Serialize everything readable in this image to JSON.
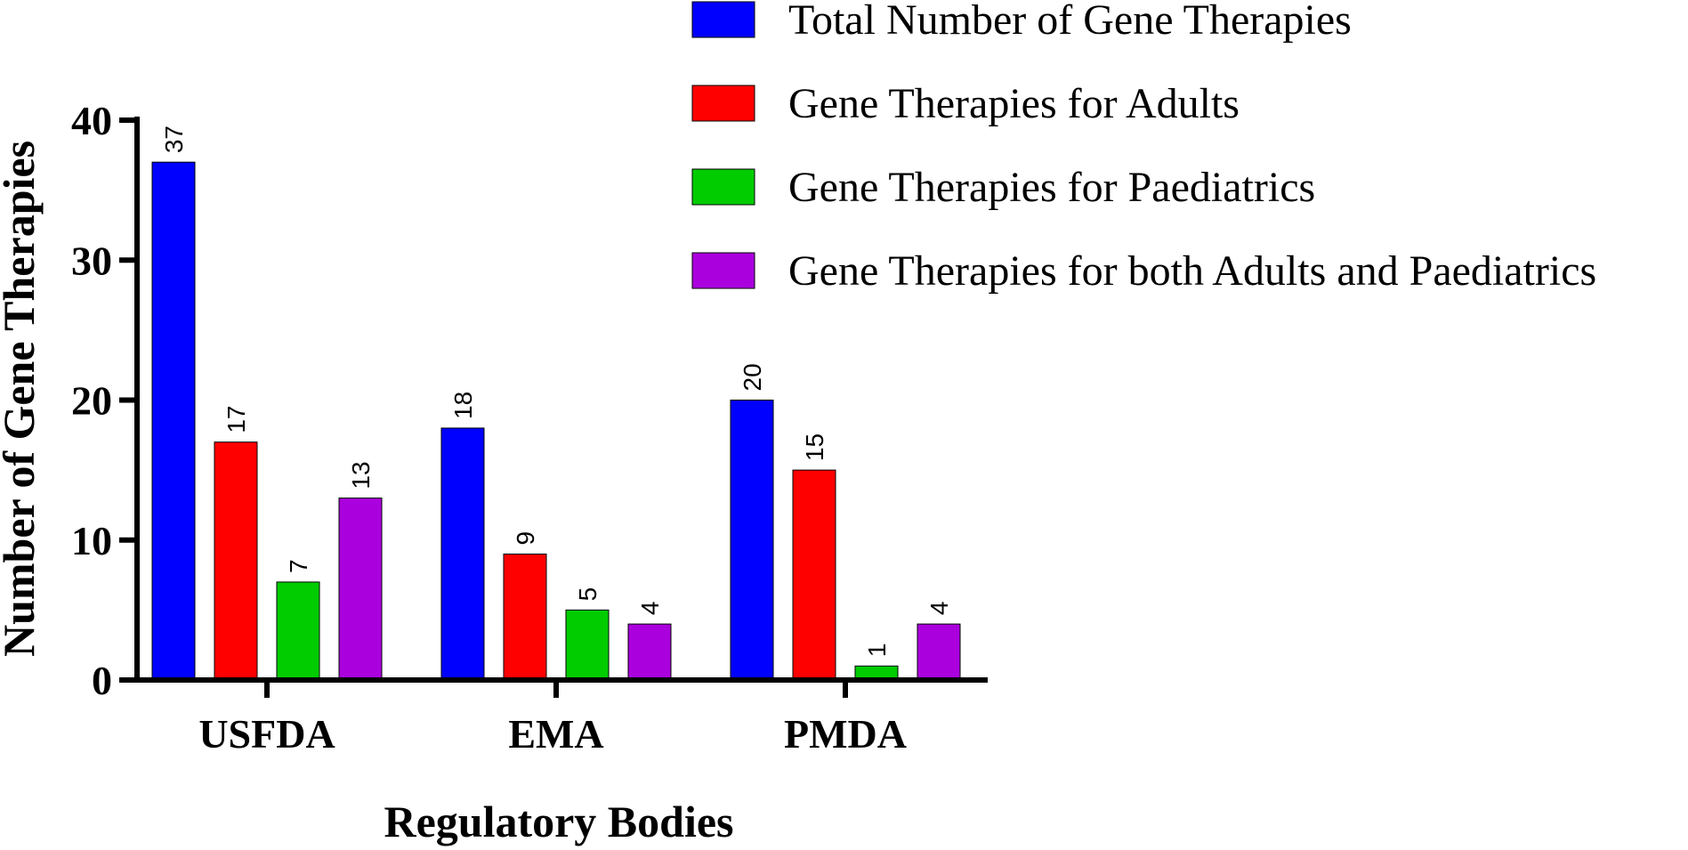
{
  "chart_data": {
    "type": "bar",
    "categories": [
      "USFDA",
      "EMA",
      "PMDA"
    ],
    "series": [
      {
        "name": "Total Number of Gene Therapies",
        "color": "#0000ff",
        "values": [
          37,
          18,
          20
        ]
      },
      {
        "name": "Gene Therapies for Adults",
        "color": "#ff0000",
        "values": [
          17,
          9,
          15
        ]
      },
      {
        "name": "Gene Therapies for Paediatrics",
        "color": "#00cc00",
        "values": [
          7,
          5,
          1
        ]
      },
      {
        "name": "Gene Therapies for both Adults and Paediatrics",
        "color": "#aa00dd",
        "values": [
          13,
          4,
          4
        ]
      }
    ],
    "xlabel": "Regulatory Bodies",
    "ylabel": "Number of Gene Therapies",
    "ylim": [
      0,
      40
    ],
    "yticks": [
      0,
      10,
      20,
      30,
      40
    ],
    "data_labels": true,
    "grid": false,
    "legend_position": "top-right"
  }
}
